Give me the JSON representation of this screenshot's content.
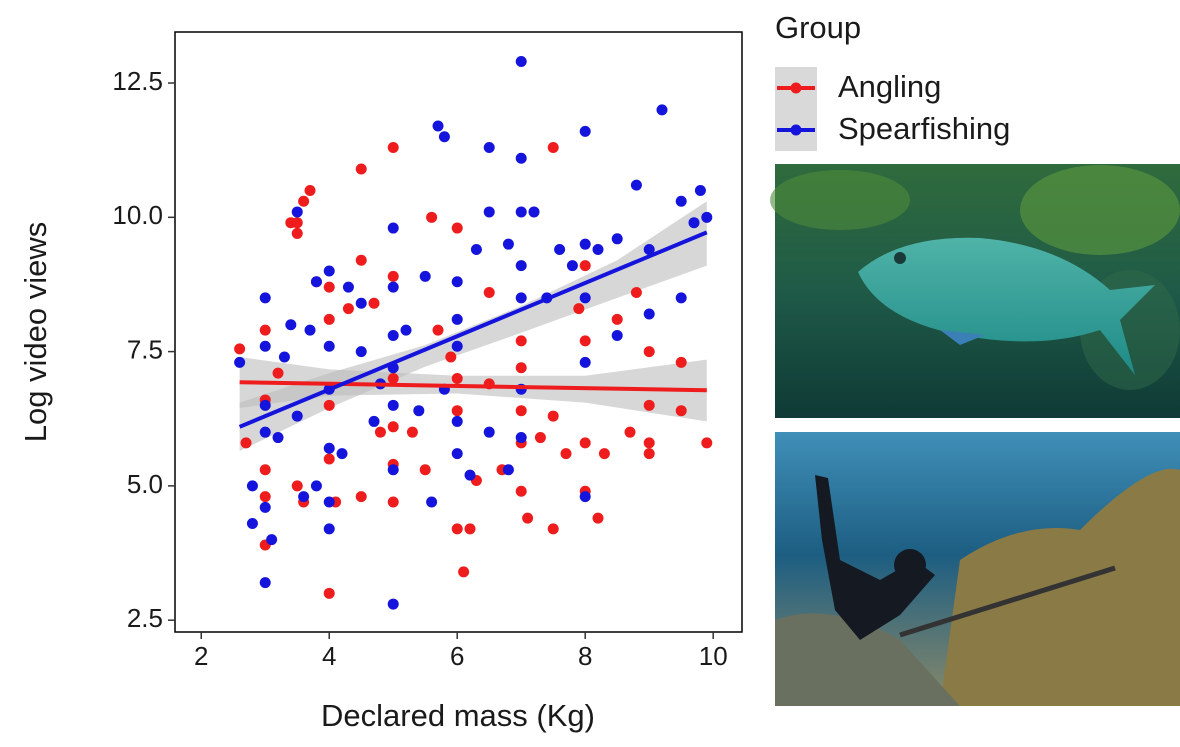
{
  "chart_data": {
    "type": "scatter",
    "x_label": "Declared mass (Kg)",
    "y_label": "Log video views",
    "legend_title": "Group",
    "xlim": [
      1.59,
      10.45
    ],
    "ylim": [
      2.28,
      13.45
    ],
    "xticks": [
      2,
      4,
      6,
      8,
      10
    ],
    "yticks": [
      2.5,
      {
        "value": 5,
        "label": "5.0"
      },
      7.5,
      {
        "value": 10,
        "label": "10.0"
      },
      12.5
    ],
    "series": [
      {
        "name": "Angling",
        "color": "#ee1c1c",
        "x": [
          2.6,
          2.7,
          3,
          3,
          3,
          3,
          3,
          3.2,
          3.4,
          3.5,
          3.5,
          3.6,
          3.7,
          3.5,
          3.6,
          3.8,
          4,
          4,
          4,
          4,
          4,
          4.1,
          4.3,
          4.5,
          4.5,
          4.5,
          4.7,
          4.8,
          5,
          5,
          5,
          5,
          5,
          5,
          5.3,
          5.5,
          5.6,
          5.7,
          5.9,
          6,
          6,
          6,
          6,
          6.1,
          6.2,
          6.3,
          6.5,
          6.5,
          6.7,
          7,
          7,
          7,
          7,
          7,
          7.1,
          7.3,
          7.5,
          7.5,
          7.5,
          7.7,
          7.9,
          8,
          8,
          8,
          8,
          8.2,
          8.3,
          8.5,
          8.7,
          8.8,
          9,
          9,
          9,
          9,
          9.5,
          9.5,
          9.9
        ],
        "y": [
          7.55,
          5.8,
          7.9,
          6.6,
          5.3,
          4.8,
          3.9,
          7.1,
          9.9,
          9.7,
          9.9,
          10.3,
          10.5,
          5.0,
          4.7,
          8.8,
          8.7,
          8.1,
          6.5,
          5.5,
          3.0,
          4.7,
          8.3,
          10.9,
          9.2,
          4.8,
          8.4,
          6.0,
          11.3,
          8.9,
          7.0,
          6.1,
          4.7,
          5.4,
          6.0,
          5.3,
          10.0,
          7.9,
          7.4,
          9.8,
          7.0,
          6.4,
          4.2,
          3.4,
          4.2,
          5.1,
          6.9,
          8.6,
          5.3,
          7.7,
          7.2,
          6.4,
          5.8,
          4.9,
          4.4,
          5.9,
          11.3,
          6.3,
          4.2,
          5.6,
          8.3,
          9.1,
          7.7,
          5.8,
          4.9,
          4.4,
          5.6,
          8.1,
          6.0,
          8.6,
          7.5,
          6.5,
          5.8,
          5.6,
          7.3,
          6.4,
          5.8
        ],
        "fit": {
          "x": [
            2.6,
            9.9
          ],
          "y": [
            6.93,
            6.78
          ]
        },
        "band": {
          "x": [
            2.6,
            4,
            6,
            8,
            9.9
          ],
          "lower": [
            6.45,
            6.68,
            6.72,
            6.55,
            6.2
          ],
          "upper": [
            7.4,
            7.17,
            7.05,
            7.05,
            7.35
          ]
        }
      },
      {
        "name": "Spearfishing",
        "color": "#1414dc",
        "x": [
          2.6,
          2.8,
          2.8,
          3,
          3,
          3,
          3,
          3,
          3,
          3.1,
          3.2,
          3.3,
          3.4,
          3.5,
          3.5,
          3.6,
          3.7,
          3.8,
          3.8,
          4,
          4,
          4,
          4,
          4,
          4,
          4.2,
          4.3,
          4.5,
          4.5,
          4.7,
          4.8,
          5,
          5,
          5,
          5,
          5,
          5,
          5,
          5.2,
          5.4,
          5.5,
          5.6,
          5.7,
          5.8,
          5.8,
          6,
          6,
          6,
          6,
          6,
          6.2,
          6.3,
          6.5,
          6.5,
          6.5,
          6.8,
          6.8,
          7,
          7,
          7,
          7,
          7,
          7,
          7,
          7.2,
          7.4,
          7.6,
          7.8,
          8,
          8,
          8,
          8,
          8,
          8.2,
          8.5,
          8.5,
          8.8,
          9,
          9,
          9.2,
          9.5,
          9.5,
          9.7,
          9.8,
          9.9
        ],
        "y": [
          7.3,
          5.0,
          4.3,
          8.5,
          7.6,
          6.5,
          6.0,
          4.6,
          3.2,
          4.0,
          5.9,
          7.4,
          8.0,
          10.1,
          6.3,
          4.8,
          7.9,
          5.0,
          8.8,
          9.0,
          7.6,
          6.8,
          5.7,
          4.7,
          4.2,
          5.6,
          8.7,
          7.5,
          8.4,
          6.2,
          6.9,
          9.8,
          8.7,
          7.8,
          7.2,
          6.5,
          5.3,
          2.8,
          7.9,
          6.4,
          8.9,
          4.7,
          11.7,
          11.5,
          6.8,
          8.8,
          8.1,
          7.6,
          6.2,
          5.6,
          5.2,
          9.4,
          11.3,
          10.1,
          6.0,
          9.5,
          5.3,
          12.9,
          11.1,
          10.1,
          9.1,
          8.5,
          6.8,
          5.9,
          10.1,
          8.5,
          9.4,
          9.1,
          11.6,
          9.5,
          8.5,
          7.3,
          4.8,
          9.4,
          7.8,
          9.6,
          10.6,
          9.4,
          8.2,
          12.0,
          10.3,
          8.5,
          9.9,
          10.5,
          10.0
        ],
        "fit": {
          "x": [
            2.6,
            9.9
          ],
          "y": [
            6.1,
            9.72
          ]
        },
        "band": {
          "x": [
            2.6,
            4,
            5.5,
            7,
            8.5,
            9.9
          ],
          "lower": [
            5.65,
            6.45,
            7.22,
            7.85,
            8.5,
            9.1
          ],
          "upper": [
            6.55,
            7.1,
            7.62,
            8.35,
            9.2,
            10.3
          ]
        }
      }
    ]
  }
}
